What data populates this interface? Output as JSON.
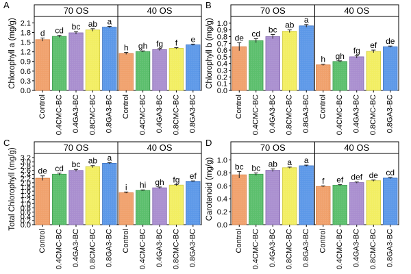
{
  "chart_data": [
    {
      "panel": "A",
      "type": "bar",
      "ylabel": "Chlorophyll a (mg/g)",
      "ylim": [
        0,
        2.3
      ],
      "yticks": [
        "0.0",
        "0.3",
        "0.6",
        "0.9",
        "1.2",
        "1.5",
        "1.8",
        "2.1"
      ],
      "groups": [
        "70 OS",
        "40 OS"
      ],
      "categories": [
        "Control",
        "0.4CMC-BC",
        "0.4GA3-BC",
        "0.8CMC-BC",
        "0.8GA3-BC"
      ],
      "series": [
        {
          "group": "70 OS",
          "values": [
            1.58,
            1.68,
            1.79,
            1.88,
            1.97
          ],
          "errors": [
            0.05,
            0.03,
            0.04,
            0.04,
            0.02
          ],
          "letters": [
            "d",
            "cd",
            "bc",
            "ab",
            "a"
          ]
        },
        {
          "group": "40 OS",
          "values": [
            1.15,
            1.21,
            1.27,
            1.31,
            1.42
          ],
          "errors": [
            0.03,
            0.02,
            0.03,
            0.02,
            0.02
          ],
          "letters": [
            "h",
            "gh",
            "fg",
            "f",
            "e"
          ]
        }
      ]
    },
    {
      "panel": "B",
      "type": "bar",
      "ylabel": "Chlorophyll b (mg/g)",
      "ylim": [
        0,
        1.1
      ],
      "yticks": [
        "0.0",
        "0.1",
        "0.2",
        "0.3",
        "0.4",
        "0.5",
        "0.6",
        "0.7",
        "0.8",
        "0.9",
        "1.0"
      ],
      "groups": [
        "70 OS",
        "40 OS"
      ],
      "categories": [
        "Control",
        "0.4CMC-BC",
        "0.4GA3-BC",
        "0.8CMC-BC",
        "0.8GA3-BC"
      ],
      "series": [
        {
          "group": "70 OS",
          "values": [
            0.65,
            0.74,
            0.8,
            0.88,
            0.96
          ],
          "errors": [
            0.06,
            0.03,
            0.03,
            0.02,
            0.02
          ],
          "letters": [
            "de",
            "cd",
            "bc",
            "ab",
            "a"
          ]
        },
        {
          "group": "40 OS",
          "values": [
            0.38,
            0.43,
            0.5,
            0.58,
            0.65
          ],
          "errors": [
            0.01,
            0.01,
            0.02,
            0.02,
            0.01
          ],
          "letters": [
            "h",
            "gh",
            "fg",
            "ef",
            "de"
          ]
        }
      ]
    },
    {
      "panel": "C",
      "type": "bar",
      "ylabel": "Total Chlorophyll (mg/g)",
      "ylim": [
        0,
        3.4
      ],
      "yticks": [
        "0.0",
        "0.2",
        "0.4",
        "0.6",
        "0.8",
        "1.0",
        "1.2",
        "1.4",
        "1.6",
        "1.8",
        "2.0",
        "2.2",
        "2.4",
        "2.6",
        "2.8",
        "3.0",
        "3.2"
      ],
      "groups": [
        "70 OS",
        "40 OS"
      ],
      "categories": [
        "Control",
        "0.4CMC-BC",
        "0.4GA3-BC",
        "0.8CMC-BC",
        "0.8GA3-BC"
      ],
      "series": [
        {
          "group": "70 OS",
          "values": [
            2.22,
            2.41,
            2.59,
            2.77,
            2.93
          ],
          "errors": [
            0.11,
            0.05,
            0.05,
            0.05,
            0.03
          ],
          "letters": [
            "de",
            "cd",
            "bc",
            "ab",
            "a"
          ]
        },
        {
          "group": "40 OS",
          "values": [
            1.53,
            1.64,
            1.76,
            1.89,
            2.07
          ],
          "errors": [
            0.03,
            0.02,
            0.04,
            0.03,
            0.02
          ],
          "letters": [
            "i",
            "hi",
            "gh",
            "fg",
            "ef"
          ]
        }
      ]
    },
    {
      "panel": "D",
      "type": "bar",
      "ylabel": "Carotenoid (mg/g)",
      "ylim": [
        0,
        1.1
      ],
      "yticks": [
        "0.0",
        "0.2",
        "0.4",
        "0.6",
        "0.8",
        "1.0"
      ],
      "groups": [
        "70 OS",
        "40 OS"
      ],
      "categories": [
        "Control",
        "0.4CMC-BC",
        "0.4GA3-BC",
        "0.8CMC-BC",
        "0.8GA3-BC"
      ],
      "series": [
        {
          "group": "70 OS",
          "values": [
            0.77,
            0.78,
            0.84,
            0.88,
            0.91
          ],
          "errors": [
            0.05,
            0.02,
            0.02,
            0.01,
            0.01
          ],
          "letters": [
            "bc",
            "bc",
            "ab",
            "a",
            "a"
          ]
        },
        {
          "group": "40 OS",
          "values": [
            0.59,
            0.61,
            0.65,
            0.68,
            0.72
          ],
          "errors": [
            0.01,
            0.01,
            0.01,
            0.01,
            0.01
          ],
          "letters": [
            "f",
            "ef",
            "def",
            "de",
            "cd"
          ]
        }
      ]
    }
  ],
  "colors": {
    "bars": [
      "#F0A16C",
      "#5CBF6D",
      "#A98ECF",
      "#F2EE62",
      "#5C98E8"
    ],
    "bar_borders": [
      "#D97E43",
      "#3E9A4F",
      "#8367AD",
      "#CFC93E",
      "#3E73C2"
    ],
    "header_bg": "#ffffff",
    "axis": "#000000"
  }
}
